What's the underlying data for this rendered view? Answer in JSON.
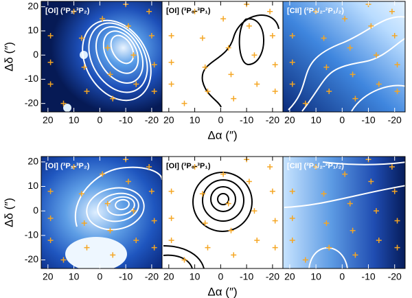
{
  "chart_data": [
    {
      "type": "scatter",
      "title": "[OI] (³P₁-³P₂)",
      "xlim": [
        22.6,
        -24
      ],
      "ylim": [
        -23.5,
        22.2
      ],
      "xticks": [
        20,
        10,
        0,
        -10,
        -20
      ],
      "yticks": [
        -20,
        -10,
        0,
        10,
        20
      ],
      "ylabel": "Δδ (″)",
      "color": "#f5a623",
      "x": [
        19,
        19,
        19,
        10,
        7,
        6,
        5,
        -1,
        -3,
        -4,
        -5,
        -11,
        -13,
        -14,
        -19,
        -20,
        -21,
        -21,
        14,
        -10
      ],
      "y": [
        8,
        -3,
        -12,
        18,
        7,
        -5,
        -15,
        15,
        3,
        -8,
        -18,
        12,
        0,
        -12,
        18,
        8,
        -4,
        -15,
        -20,
        21
      ]
    },
    {
      "type": "scatter",
      "title": "[OI] (³P₀-³P₁)",
      "xlim": [
        22.6,
        -24
      ],
      "ylim": [
        -23.5,
        22.2
      ],
      "xticks": [
        20,
        10,
        0,
        -10,
        -20
      ],
      "xlabel": "Δα (″)",
      "color": "#f5a623",
      "x": [
        19,
        19,
        19,
        10,
        7,
        6,
        5,
        -1,
        -3,
        -4,
        -5,
        -11,
        -13,
        -14,
        -19,
        -20,
        -21,
        -21,
        14,
        -10
      ],
      "y": [
        8,
        -3,
        -12,
        18,
        7,
        -5,
        -15,
        15,
        3,
        -8,
        -18,
        12,
        0,
        -12,
        18,
        8,
        -4,
        -15,
        -20,
        21
      ]
    },
    {
      "type": "scatter",
      "title": "[CII] (²P₃/₂-²P₁/₂)",
      "xlim": [
        22.6,
        -24
      ],
      "ylim": [
        -23.5,
        22.2
      ],
      "xticks": [
        20,
        10,
        0,
        -10,
        -20
      ],
      "color": "#f5a623",
      "x": [
        19,
        19,
        19,
        10,
        7,
        6,
        5,
        -1,
        -3,
        -4,
        -5,
        -11,
        -13,
        -14,
        -19,
        -20,
        -21,
        -21,
        14,
        -10
      ],
      "y": [
        8,
        -3,
        -12,
        18,
        7,
        -5,
        -15,
        15,
        3,
        -8,
        -18,
        12,
        0,
        -12,
        18,
        8,
        -4,
        -15,
        -20,
        21
      ]
    },
    {
      "type": "scatter",
      "title": "[OI] (³P₁-³P₂)",
      "xlim": [
        22.6,
        -24
      ],
      "ylim": [
        -23.5,
        22.2
      ],
      "xticks": [
        20,
        10,
        0,
        -10,
        -20
      ],
      "yticks": [
        -20,
        -10,
        0,
        10,
        20
      ],
      "ylabel": "Δδ (″)",
      "color": "#f5a623",
      "x": [
        19,
        19,
        19,
        10,
        7,
        6,
        5,
        -1,
        -3,
        -4,
        -5,
        -11,
        -13,
        -14,
        -19,
        -20,
        -21,
        -21,
        14,
        -10
      ],
      "y": [
        8,
        -3,
        -12,
        18,
        7,
        -5,
        -15,
        15,
        3,
        -8,
        -18,
        12,
        0,
        -12,
        18,
        8,
        -4,
        -15,
        -20,
        21
      ]
    },
    {
      "type": "scatter",
      "title": "[OI] (³P₀-³P₁)",
      "xlim": [
        22.6,
        -24
      ],
      "ylim": [
        -23.5,
        22.2
      ],
      "xticks": [
        20,
        10,
        0,
        -10,
        -20
      ],
      "xlabel": "Δα (″)",
      "color": "#f5a623",
      "x": [
        19,
        19,
        19,
        10,
        7,
        6,
        5,
        -1,
        -3,
        -4,
        -5,
        -11,
        -13,
        -14,
        -19,
        -20,
        -21,
        -21,
        14,
        -10
      ],
      "y": [
        8,
        -3,
        -12,
        18,
        7,
        -5,
        -15,
        15,
        3,
        -8,
        -18,
        12,
        0,
        -12,
        18,
        8,
        -4,
        -15,
        -20,
        21
      ]
    },
    {
      "type": "scatter",
      "title": "[CII] (²P₃/₂-²P₁/₂)",
      "xlim": [
        22.6,
        -24
      ],
      "ylim": [
        -23.5,
        22.2
      ],
      "xticks": [
        20,
        10,
        0,
        -10,
        -20
      ],
      "color": "#f5a623",
      "x": [
        19,
        19,
        19,
        10,
        7,
        6,
        5,
        -1,
        -3,
        -4,
        -5,
        -11,
        -13,
        -14,
        -19,
        -20,
        -21,
        -21,
        14,
        -10
      ],
      "y": [
        8,
        -3,
        -12,
        18,
        7,
        -5,
        -15,
        15,
        3,
        -8,
        -18,
        12,
        0,
        -12,
        18,
        8,
        -4,
        -15,
        -20,
        21
      ]
    }
  ]
}
